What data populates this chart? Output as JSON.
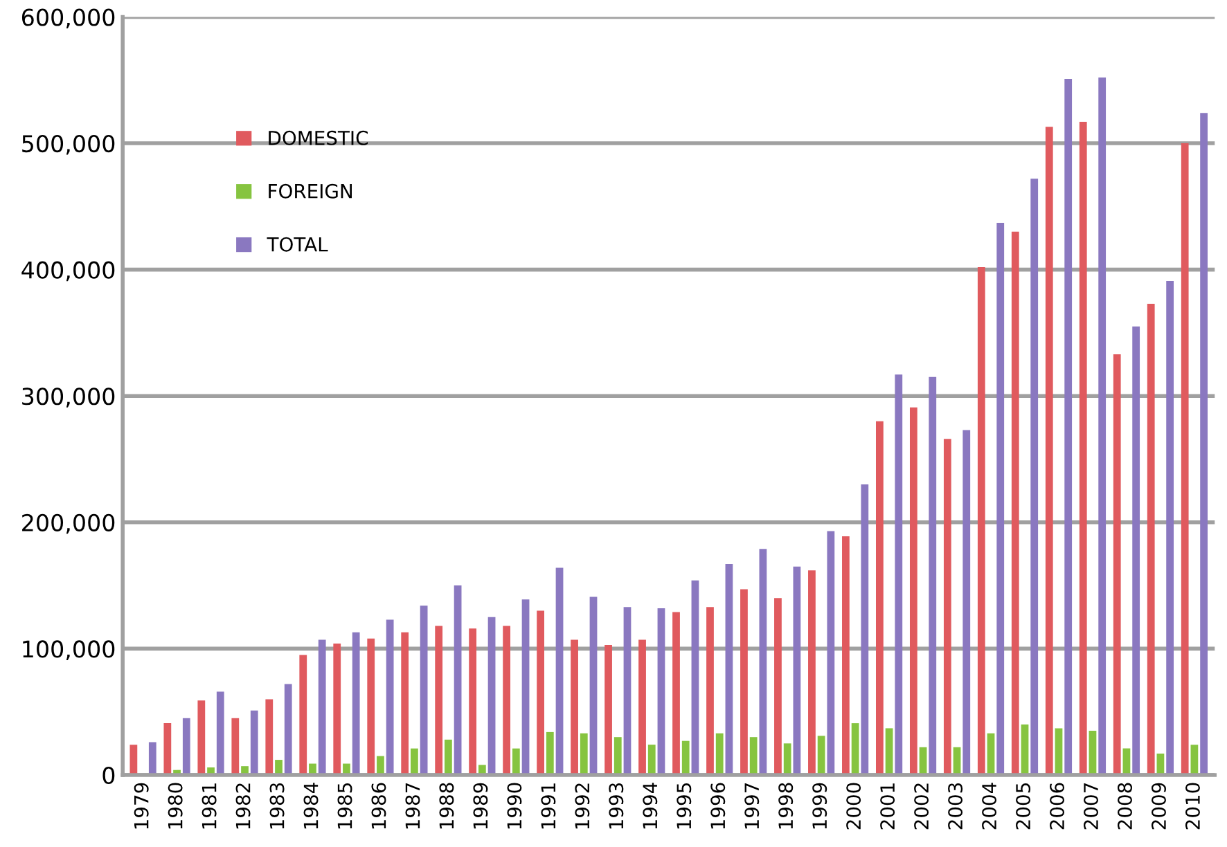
{
  "chart_data": {
    "type": "bar",
    "categories": [
      "1979",
      "1980",
      "1981",
      "1982",
      "1983",
      "1984",
      "1985",
      "1986",
      "1987",
      "1988",
      "1989",
      "1990",
      "1991",
      "1992",
      "1993",
      "1994",
      "1995",
      "1996",
      "1997",
      "1998",
      "1999",
      "2000",
      "2001",
      "2002",
      "2003",
      "2004",
      "2005",
      "2006",
      "2007",
      "2008",
      "2009",
      "2010"
    ],
    "series": [
      {
        "name": "DOMESTIC",
        "color": "#e05a5e",
        "values": [
          24000,
          41000,
          59000,
          45000,
          60000,
          95000,
          104000,
          108000,
          113000,
          118000,
          116000,
          118000,
          130000,
          107000,
          103000,
          107000,
          129000,
          133000,
          147000,
          140000,
          162000,
          189000,
          280000,
          291000,
          266000,
          402000,
          430000,
          513000,
          517000,
          333000,
          373000,
          500000
        ]
      },
      {
        "name": "FOREIGN",
        "color": "#86c440",
        "values": [
          1000,
          4000,
          6000,
          7000,
          12000,
          9000,
          9000,
          15000,
          21000,
          28000,
          8000,
          21000,
          34000,
          33000,
          30000,
          24000,
          27000,
          33000,
          30000,
          25000,
          31000,
          41000,
          37000,
          22000,
          22000,
          33000,
          40000,
          37000,
          35000,
          21000,
          17000,
          24000
        ]
      },
      {
        "name": "TOTAL",
        "color": "#8a78c0",
        "values": [
          26000,
          45000,
          66000,
          51000,
          72000,
          107000,
          113000,
          123000,
          134000,
          150000,
          125000,
          139000,
          164000,
          141000,
          133000,
          132000,
          154000,
          167000,
          179000,
          165000,
          193000,
          230000,
          317000,
          315000,
          273000,
          437000,
          472000,
          551000,
          552000,
          355000,
          391000,
          524000
        ]
      }
    ],
    "ylim": [
      0,
      600000
    ],
    "yticks": [
      0,
      {
        "value": 100000,
        "label": "100,000"
      },
      {
        "value": 200000,
        "label": "200,000"
      },
      {
        "value": 300000,
        "label": "300,000"
      },
      {
        "value": 400000,
        "label": "400,000"
      },
      {
        "value": 500000,
        "label": "500,000"
      },
      {
        "value": 600000,
        "label": "600,000"
      }
    ],
    "grid": "y",
    "legend": "top left"
  }
}
